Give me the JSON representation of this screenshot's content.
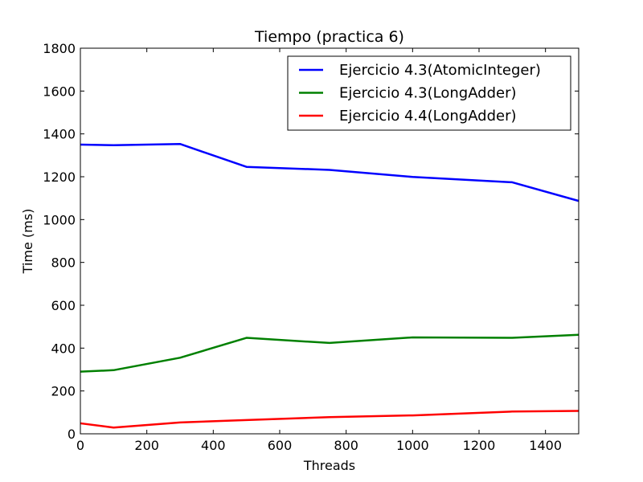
{
  "chart_data": {
    "type": "line",
    "title": "Tiempo (practica 6)",
    "xlabel": "Threads",
    "ylabel": "Time (ms)",
    "xlim": [
      0,
      1500
    ],
    "ylim": [
      0,
      1800
    ],
    "xticks": [
      0,
      200,
      400,
      600,
      800,
      1000,
      1200,
      1400
    ],
    "yticks": [
      0,
      200,
      400,
      600,
      800,
      1000,
      1200,
      1400,
      1600,
      1800
    ],
    "grid": false,
    "legend_position": "top-right",
    "series": [
      {
        "name": "Ejercicio 4.3(AtomicInteger)",
        "color": "#0000ff",
        "x": [
          0,
          100,
          300,
          500,
          750,
          1000,
          1300,
          1500
        ],
        "y": [
          1350,
          1347,
          1353,
          1246,
          1232,
          1199,
          1174,
          1087
        ]
      },
      {
        "name": "Ejercicio 4.3(LongAdder)",
        "color": "#008000",
        "x": [
          0,
          100,
          300,
          500,
          750,
          1000,
          1300,
          1500
        ],
        "y": [
          290,
          297,
          355,
          448,
          424,
          450,
          448,
          462
        ]
      },
      {
        "name": "Ejercicio 4.4(LongAdder)",
        "color": "#ff0000",
        "x": [
          0,
          100,
          300,
          500,
          750,
          1000,
          1300,
          1500
        ],
        "y": [
          49,
          29,
          53,
          64,
          78,
          86,
          104,
          107
        ]
      }
    ]
  }
}
